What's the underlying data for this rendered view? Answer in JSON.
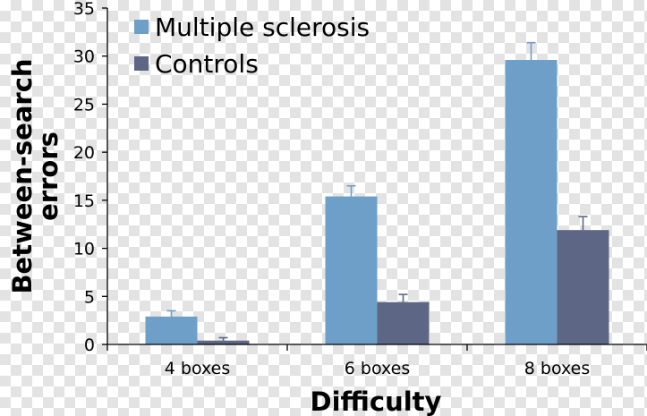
{
  "colors": {
    "series_ms": "#6d9fc8",
    "series_controls": "#5d6785",
    "axis": "#000000"
  },
  "chart_data": {
    "type": "bar",
    "xlabel": "Difficulty",
    "ylabel": "Between-search errors",
    "ylabel_lines": [
      "Between-search",
      "errors"
    ],
    "ylim": [
      0,
      35
    ],
    "yticks": [
      0,
      5,
      10,
      15,
      20,
      25,
      30,
      35
    ],
    "categories": [
      "4 boxes",
      "6 boxes",
      "8 boxes"
    ],
    "series": [
      {
        "name": "Multiple sclerosis",
        "values": [
          2.9,
          15.4,
          29.6
        ],
        "errors": [
          0.6,
          1.1,
          1.8
        ]
      },
      {
        "name": "Controls",
        "values": [
          0.4,
          4.4,
          11.9
        ],
        "errors": [
          0.3,
          0.8,
          1.4
        ]
      }
    ],
    "legend_position": "top-left",
    "grid": false
  }
}
